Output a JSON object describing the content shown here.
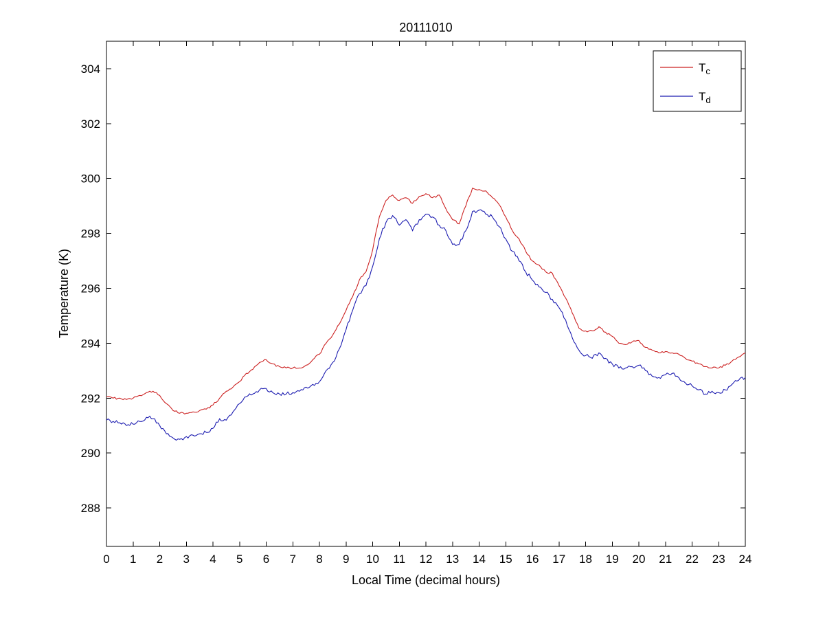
{
  "chart_data": {
    "type": "line",
    "title": "20111010",
    "xlabel": "Local Time (decimal hours)",
    "ylabel": "Temperature (K)",
    "xlim": [
      0,
      24
    ],
    "ylim": [
      286.6,
      305.0
    ],
    "x_ticks": [
      0,
      1,
      2,
      3,
      4,
      5,
      6,
      7,
      8,
      9,
      10,
      11,
      12,
      13,
      14,
      15,
      16,
      17,
      18,
      19,
      20,
      21,
      22,
      23,
      24
    ],
    "y_ticks": [
      288,
      290,
      292,
      294,
      296,
      298,
      300,
      302,
      304
    ],
    "grid": false,
    "legend_position": "northeast",
    "background_color": "#ffffff",
    "axis_color": "#000000",
    "x": [
      0,
      0.25,
      0.5,
      0.75,
      1,
      1.25,
      1.5,
      1.75,
      2,
      2.25,
      2.5,
      2.75,
      3,
      3.25,
      3.5,
      3.75,
      4,
      4.25,
      4.5,
      4.75,
      5,
      5.25,
      5.5,
      5.75,
      6,
      6.25,
      6.5,
      6.75,
      7,
      7.25,
      7.5,
      7.75,
      8,
      8.25,
      8.5,
      8.75,
      9,
      9.25,
      9.5,
      9.75,
      10,
      10.25,
      10.5,
      10.75,
      11,
      11.25,
      11.5,
      11.75,
      12,
      12.25,
      12.5,
      12.75,
      13,
      13.25,
      13.5,
      13.75,
      14,
      14.25,
      14.5,
      14.75,
      15,
      15.25,
      15.5,
      15.75,
      16,
      16.25,
      16.5,
      16.75,
      17,
      17.25,
      17.5,
      17.75,
      18,
      18.25,
      18.5,
      18.75,
      19,
      19.25,
      19.5,
      19.75,
      20,
      20.25,
      20.5,
      20.75,
      21,
      21.25,
      21.5,
      21.75,
      22,
      22.25,
      22.5,
      22.75,
      23,
      23.25,
      23.5,
      23.75,
      24
    ],
    "series": [
      {
        "name": "Tc",
        "label": {
          "main": "T",
          "sub": "c"
        },
        "color": "#cc2222",
        "values": [
          292.05,
          292.0,
          292.0,
          291.95,
          292.0,
          292.1,
          292.2,
          292.25,
          292.1,
          291.8,
          291.55,
          291.45,
          291.45,
          291.5,
          291.55,
          291.6,
          291.75,
          292.0,
          292.25,
          292.4,
          292.6,
          292.9,
          293.05,
          293.3,
          293.4,
          293.25,
          293.15,
          293.1,
          293.1,
          293.1,
          293.2,
          293.4,
          293.6,
          294.0,
          294.3,
          294.7,
          295.2,
          295.7,
          296.3,
          296.6,
          297.4,
          298.6,
          299.2,
          299.4,
          299.2,
          299.3,
          299.1,
          299.35,
          299.45,
          299.3,
          299.4,
          298.9,
          298.5,
          298.35,
          299.0,
          299.65,
          299.6,
          299.55,
          299.3,
          299.05,
          298.6,
          298.1,
          297.8,
          297.35,
          297.0,
          296.85,
          296.6,
          296.55,
          296.1,
          295.65,
          295.1,
          294.55,
          294.45,
          294.45,
          294.6,
          294.4,
          294.25,
          294.0,
          293.95,
          294.05,
          294.1,
          293.85,
          293.75,
          293.65,
          293.7,
          293.65,
          293.6,
          293.45,
          293.35,
          293.25,
          293.15,
          293.1,
          293.1,
          293.2,
          293.35,
          293.5,
          293.65
        ]
      },
      {
        "name": "Td",
        "label": {
          "main": "T",
          "sub": "d"
        },
        "color": "#1c1cb0",
        "values": [
          291.2,
          291.15,
          291.1,
          291.0,
          291.05,
          291.15,
          291.3,
          291.25,
          291.0,
          290.7,
          290.55,
          290.5,
          290.6,
          290.65,
          290.7,
          290.75,
          290.9,
          291.25,
          291.2,
          291.5,
          291.8,
          292.05,
          292.15,
          292.3,
          292.35,
          292.2,
          292.15,
          292.15,
          292.2,
          292.25,
          292.4,
          292.5,
          292.6,
          293.0,
          293.3,
          293.8,
          294.5,
          295.2,
          295.8,
          296.1,
          296.8,
          297.8,
          298.4,
          298.65,
          298.3,
          298.5,
          298.1,
          298.5,
          298.7,
          298.6,
          298.3,
          298.1,
          297.6,
          297.6,
          298.1,
          298.8,
          298.85,
          298.7,
          298.6,
          298.25,
          297.8,
          297.35,
          297.0,
          296.6,
          296.3,
          296.05,
          295.85,
          295.6,
          295.3,
          294.85,
          294.2,
          293.75,
          293.55,
          293.45,
          293.65,
          293.45,
          293.25,
          293.1,
          293.1,
          293.15,
          293.2,
          293.0,
          292.8,
          292.75,
          292.85,
          292.9,
          292.75,
          292.55,
          292.45,
          292.3,
          292.15,
          292.25,
          292.2,
          292.3,
          292.5,
          292.65,
          292.75
        ]
      }
    ]
  }
}
